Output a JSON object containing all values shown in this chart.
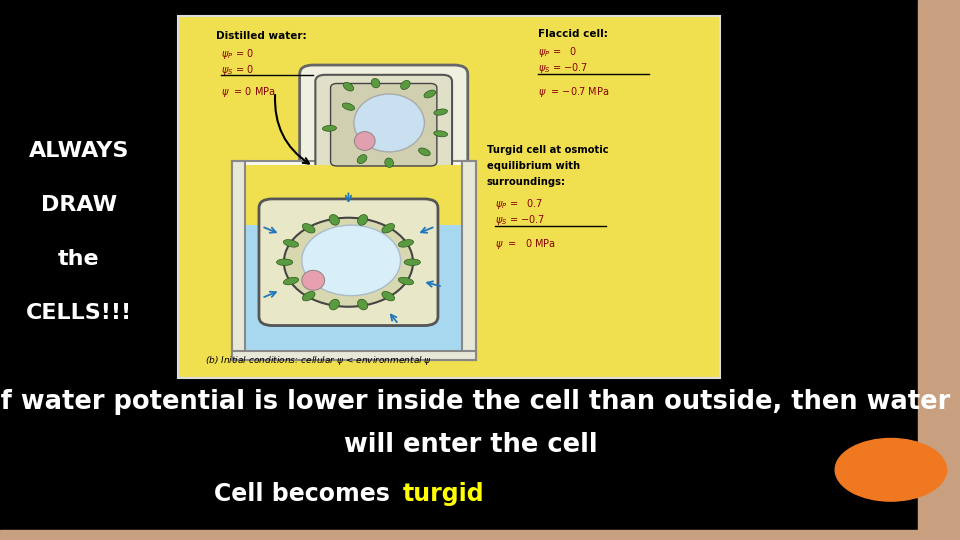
{
  "bg_color": "#000000",
  "left_text_lines": [
    "ALWAYS",
    "DRAW",
    "the",
    "CELLS!!!"
  ],
  "left_text_color": "#ffffff",
  "panel_bg": "#f0e050",
  "panel_border": "#ffffff",
  "line1": "If water potential is lower inside the cell than outside, then water",
  "line2": "will enter the cell",
  "line3_plain": "Cell becomes ",
  "line3_colored": "turgid",
  "line3_color": "#ffff00",
  "text_color": "#ffffff",
  "orange_color": "#f07820",
  "right_border_color": "#c8a080",
  "bottom_border_color": "#c8a080"
}
